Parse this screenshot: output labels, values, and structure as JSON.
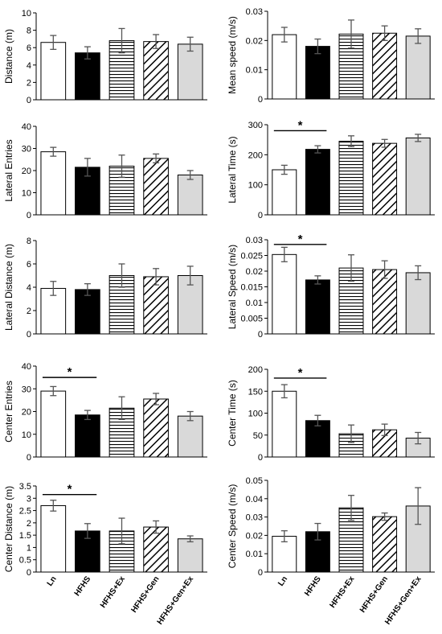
{
  "categories": [
    "Ln",
    "HFHS",
    "HFHS+Ex",
    "HFHS+Gen",
    "HFHS+Gen+Ex"
  ],
  "colors": {
    "bar_stroke": "#000000",
    "error_bar": "#555555",
    "fill_black": "#000000",
    "fill_gray": "#d9d9d9",
    "fill_white": "#ffffff"
  },
  "chart_data": [
    {
      "type": "bar",
      "ylabel": "Distance (m)",
      "ylim": [
        0,
        10
      ],
      "yticks": [
        0,
        2,
        4,
        6,
        8,
        10
      ],
      "tick_labels": [
        "0",
        "2",
        "4",
        "6",
        "8",
        "10"
      ],
      "values": [
        6.6,
        5.4,
        6.8,
        6.7,
        6.4
      ],
      "errors": [
        0.8,
        0.7,
        1.4,
        0.8,
        0.8
      ],
      "significance": []
    },
    {
      "type": "bar",
      "ylabel": "Mean speed (m/s)",
      "ylim": [
        0,
        0.03
      ],
      "yticks": [
        0,
        0.01,
        0.02,
        0.03
      ],
      "tick_labels": [
        "0",
        "0.01",
        "0.02",
        "0.03"
      ],
      "values": [
        0.022,
        0.018,
        0.0222,
        0.0225,
        0.0215
      ],
      "errors": [
        0.0025,
        0.0025,
        0.0048,
        0.0025,
        0.0025
      ],
      "significance": []
    },
    {
      "type": "bar",
      "ylabel": "Lateral Entries",
      "ylim": [
        0,
        40
      ],
      "yticks": [
        0,
        10,
        20,
        30,
        40
      ],
      "tick_labels": [
        "0",
        "10",
        "20",
        "30",
        "40"
      ],
      "values": [
        28.5,
        21.5,
        22.0,
        25.5,
        18.0
      ],
      "errors": [
        2.0,
        4.0,
        5.0,
        2.0,
        2.0
      ],
      "significance": []
    },
    {
      "type": "bar",
      "ylabel": "Lateral Time (s)",
      "ylim": [
        0,
        300
      ],
      "yticks": [
        0,
        100,
        200,
        300
      ],
      "tick_labels": [
        "0",
        "100",
        "200",
        "300"
      ],
      "values": [
        150,
        218,
        245,
        238,
        256
      ],
      "errors": [
        15,
        12,
        18,
        13,
        12
      ],
      "significance": [
        {
          "from": 0,
          "to": 1,
          "label": "*",
          "y": 280
        }
      ]
    },
    {
      "type": "bar",
      "ylabel": "Lateral Distance (m)",
      "ylim": [
        0,
        8
      ],
      "yticks": [
        0,
        2,
        4,
        6,
        8
      ],
      "tick_labels": [
        "0",
        "2",
        "4",
        "6",
        "8"
      ],
      "values": [
        3.9,
        3.8,
        5.0,
        4.9,
        5.0
      ],
      "errors": [
        0.6,
        0.5,
        1.0,
        0.7,
        0.8
      ],
      "significance": []
    },
    {
      "type": "bar",
      "ylabel": "Lateral Speed (m/s)",
      "ylim": [
        0,
        0.03
      ],
      "yticks": [
        0,
        0.005,
        0.01,
        0.015,
        0.02,
        0.025,
        0.03
      ],
      "tick_labels": [
        "0",
        "0.005",
        "0.01",
        "0.015",
        "0.02",
        "0.025",
        "0.03"
      ],
      "values": [
        0.0253,
        0.0172,
        0.021,
        0.0205,
        0.0195
      ],
      "errors": [
        0.0023,
        0.0013,
        0.0042,
        0.0028,
        0.0022
      ],
      "significance": [
        {
          "from": 0,
          "to": 1,
          "label": "*",
          "y": 0.0285
        }
      ]
    },
    {
      "type": "bar",
      "ylabel": "Center Entries",
      "ylim": [
        0,
        40
      ],
      "yticks": [
        0,
        10,
        20,
        30,
        40
      ],
      "tick_labels": [
        "0",
        "10",
        "20",
        "30",
        "40"
      ],
      "values": [
        29.0,
        18.5,
        21.5,
        25.5,
        18.0
      ],
      "errors": [
        2.0,
        2.0,
        5.0,
        2.5,
        2.0
      ],
      "significance": [
        {
          "from": 0,
          "to": 1,
          "label": "*",
          "y": 35
        }
      ]
    },
    {
      "type": "bar",
      "ylabel": "Center Time (s)",
      "ylim": [
        0,
        200
      ],
      "yticks": [
        0,
        50,
        100,
        150,
        200
      ],
      "tick_labels": [
        "0",
        "50",
        "100",
        "150",
        "200"
      ],
      "values": [
        150,
        83,
        53,
        62,
        43
      ],
      "errors": [
        15,
        12,
        20,
        13,
        13
      ],
      "significance": [
        {
          "from": 0,
          "to": 1,
          "label": "*",
          "y": 180
        }
      ]
    },
    {
      "type": "bar",
      "ylabel": "Center Distance (m)",
      "ylim": [
        0,
        3.5
      ],
      "yticks": [
        0,
        0.5,
        1,
        1.5,
        2,
        2.5,
        3,
        3.5
      ],
      "tick_labels": [
        "0",
        "0.5",
        "1",
        "1.5",
        "2",
        "2.5",
        "3",
        "3.5"
      ],
      "values": [
        2.7,
        1.67,
        1.67,
        1.83,
        1.35
      ],
      "errors": [
        0.22,
        0.3,
        0.52,
        0.25,
        0.12
      ],
      "significance": [
        {
          "from": 0,
          "to": 1,
          "label": "*",
          "y": 3.15
        }
      ]
    },
    {
      "type": "bar",
      "ylabel": "Center Speed (m/s)",
      "ylim": [
        0,
        0.05
      ],
      "yticks": [
        0,
        0.01,
        0.02,
        0.03,
        0.04,
        0.05
      ],
      "tick_labels": [
        "0",
        "0.01",
        "0.02",
        "0.03",
        "0.04",
        "0.05"
      ],
      "values": [
        0.0195,
        0.022,
        0.035,
        0.0302,
        0.036
      ],
      "errors": [
        0.003,
        0.0045,
        0.0068,
        0.002,
        0.01
      ],
      "significance": []
    }
  ]
}
